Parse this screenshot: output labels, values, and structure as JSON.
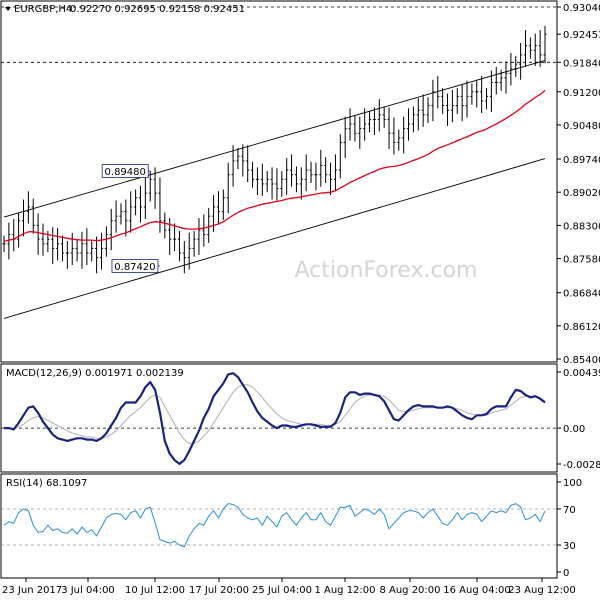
{
  "header": {
    "symbol": "EURGBP,H4",
    "ohlc": "0.92270 0.92695 0.92158 0.92451"
  },
  "watermark": "ActionForex.com",
  "colors": {
    "price": "#000000",
    "ma": "#e0001b",
    "macd": "#1a237e",
    "signal": "#b0b0b0",
    "rsi": "#2a8fd6",
    "grid": "#cccccc",
    "watermark": "#d4d4d4"
  },
  "chart_data": [
    {
      "type": "line",
      "panel": "price",
      "ylim": [
        0.854,
        0.9304
      ],
      "y_ticks": [
        "0.93040",
        "0.92451",
        "0.91840",
        "0.91200",
        "0.90480",
        "0.89740",
        "0.89020",
        "0.88300",
        "0.87580",
        "0.86840",
        "0.86120",
        "0.85400"
      ],
      "y_tick_values": [
        0.9304,
        0.92451,
        0.9184,
        0.912,
        0.9048,
        0.8974,
        0.8902,
        0.883,
        0.8758,
        0.8684,
        0.8612,
        0.854
      ],
      "x_ticks": [
        "23 Jun 2017",
        "3 Jul 04:00",
        "10 Jul 12:00",
        "17 Jul 20:00",
        "25 Jul 04:00",
        "1 Aug 12:00",
        "8 Aug 20:00",
        "16 Aug 04:00",
        "23 Aug 12:00"
      ],
      "annotations": [
        {
          "label": "0.89480",
          "value": 0.8948,
          "bar": 30
        },
        {
          "label": "0.87420",
          "value": 0.8742,
          "bar": 32
        }
      ],
      "horizontal_lines": [
        0.9304,
        0.9184
      ],
      "channel": {
        "upper": {
          "from_bar": 0,
          "from_value": 0.8848,
          "to_bar": 111,
          "to_value": 0.9188
        },
        "lower": {
          "from_bar": 0,
          "from_value": 0.8628,
          "to_bar": 111,
          "to_value": 0.8975
        }
      },
      "series": [
        {
          "name": "close",
          "values": [
            0.879,
            0.881,
            0.88,
            0.884,
            0.886,
            0.887,
            0.883,
            0.88,
            0.879,
            0.88,
            0.878,
            0.879,
            0.877,
            0.877,
            0.878,
            0.877,
            0.879,
            0.877,
            0.878,
            0.876,
            0.878,
            0.881,
            0.884,
            0.885,
            0.886,
            0.884,
            0.887,
            0.889,
            0.887,
            0.89,
            0.893,
            0.89,
            0.884,
            0.882,
            0.88,
            0.88,
            0.877,
            0.876,
            0.878,
            0.88,
            0.882,
            0.881,
            0.885,
            0.887,
            0.886,
            0.889,
            0.894,
            0.897,
            0.898,
            0.897,
            0.895,
            0.893,
            0.893,
            0.892,
            0.893,
            0.892,
            0.891,
            0.893,
            0.895,
            0.894,
            0.892,
            0.893,
            0.895,
            0.894,
            0.894,
            0.896,
            0.894,
            0.893,
            0.895,
            0.901,
            0.904,
            0.905,
            0.903,
            0.904,
            0.905,
            0.906,
            0.906,
            0.907,
            0.906,
            0.903,
            0.901,
            0.902,
            0.904,
            0.905,
            0.907,
            0.908,
            0.907,
            0.909,
            0.912,
            0.911,
            0.909,
            0.908,
            0.909,
            0.911,
            0.909,
            0.911,
            0.912,
            0.912,
            0.91,
            0.911,
            0.914,
            0.914,
            0.915,
            0.916,
            0.917,
            0.918,
            0.92,
            0.922,
            0.921,
            0.922,
            0.92,
            0.9245
          ]
        },
        {
          "name": "ma",
          "values": [
            0.8795,
            0.8798,
            0.88,
            0.8806,
            0.8812,
            0.8816,
            0.8816,
            0.8814,
            0.8812,
            0.881,
            0.8808,
            0.8806,
            0.8804,
            0.8802,
            0.88,
            0.8799,
            0.8798,
            0.8798,
            0.8798,
            0.8797,
            0.8798,
            0.88,
            0.8803,
            0.8807,
            0.8811,
            0.8814,
            0.8818,
            0.8823,
            0.8827,
            0.8832,
            0.8836,
            0.8838,
            0.8837,
            0.8835,
            0.8832,
            0.8829,
            0.8826,
            0.8823,
            0.8822,
            0.8822,
            0.8823,
            0.8824,
            0.8827,
            0.883,
            0.8833,
            0.8838,
            0.8845,
            0.8852,
            0.8858,
            0.8863,
            0.8867,
            0.887,
            0.8873,
            0.8876,
            0.8878,
            0.888,
            0.8882,
            0.8884,
            0.8887,
            0.8889,
            0.889,
            0.8892,
            0.8894,
            0.8896,
            0.8898,
            0.89,
            0.8901,
            0.8902,
            0.8905,
            0.8911,
            0.8917,
            0.8923,
            0.8928,
            0.8933,
            0.8938,
            0.8943,
            0.8947,
            0.8952,
            0.8955,
            0.8957,
            0.8958,
            0.896,
            0.8963,
            0.8967,
            0.8971,
            0.8975,
            0.8979,
            0.8984,
            0.8991,
            0.8997,
            0.9001,
            0.9005,
            0.9009,
            0.9014,
            0.9018,
            0.9022,
            0.9027,
            0.9032,
            0.9035,
            0.9039,
            0.9045,
            0.905,
            0.9056,
            0.9062,
            0.9069,
            0.9076,
            0.9084,
            0.9093,
            0.91,
            0.9108,
            0.9114,
            0.9123
          ]
        }
      ]
    },
    {
      "type": "line",
      "panel": "macd",
      "title": "MACD(12,26,9) 0.001971 0.002139",
      "ylim": [
        -0.002809,
        0.00439
      ],
      "y_ticks": [
        "0.00439",
        "0.00",
        "-0.002809"
      ],
      "y_tick_values": [
        0.00439,
        0.0,
        -0.002809
      ],
      "series": [
        {
          "name": "macd",
          "values": [
            0.0,
            0.0,
            -0.0001,
            0.0004,
            0.001,
            0.0016,
            0.0017,
            0.0012,
            0.0005,
            0.0,
            -0.0005,
            -0.0008,
            -0.0009,
            -0.001,
            -0.0009,
            -0.0008,
            -0.0008,
            -0.0009,
            -0.0009,
            -0.001,
            -0.0008,
            -0.0004,
            0.0002,
            0.0008,
            0.0016,
            0.002,
            0.002,
            0.002,
            0.0025,
            0.0032,
            0.0036,
            0.003,
            0.0012,
            -0.001,
            -0.002,
            -0.0025,
            -0.0028,
            -0.0025,
            -0.0018,
            -0.001,
            -0.0002,
            0.0008,
            0.0015,
            0.0025,
            0.003,
            0.0035,
            0.0042,
            0.0043,
            0.004,
            0.0034,
            0.0028,
            0.002,
            0.0013,
            0.0008,
            0.0005,
            0.0002,
            0.0,
            0.0002,
            0.0002,
            0.0001,
            0.0001,
            0.0002,
            0.0003,
            0.0003,
            0.0002,
            0.0001,
            0.0001,
            0.0001,
            0.0004,
            0.0012,
            0.0024,
            0.0028,
            0.0028,
            0.0026,
            0.0027,
            0.0027,
            0.0026,
            0.0025,
            0.0021,
            0.0014,
            0.0007,
            0.0006,
            0.001,
            0.0014,
            0.0017,
            0.0018,
            0.0017,
            0.0017,
            0.0017,
            0.0016,
            0.0016,
            0.0017,
            0.0016,
            0.0013,
            0.001,
            0.0008,
            0.0007,
            0.001,
            0.001,
            0.0011,
            0.0015,
            0.0017,
            0.0017,
            0.0017,
            0.0024,
            0.003,
            0.0029,
            0.0026,
            0.0024,
            0.0025,
            0.0023,
            0.002
          ]
        },
        {
          "name": "signal",
          "values": [
            0.0,
            0.0,
            0.0,
            0.0001,
            0.0003,
            0.0006,
            0.0008,
            0.0009,
            0.0008,
            0.0006,
            0.0004,
            0.0002,
            0.0,
            -0.0002,
            -0.0004,
            -0.0005,
            -0.0006,
            -0.0007,
            -0.0007,
            -0.0008,
            -0.0008,
            -0.0007,
            -0.0005,
            -0.0002,
            0.0002,
            0.0006,
            0.001,
            0.0013,
            0.0016,
            0.002,
            0.0024,
            0.0026,
            0.0024,
            0.0017,
            0.001,
            0.0003,
            -0.0004,
            -0.0009,
            -0.0012,
            -0.0012,
            -0.001,
            -0.0006,
            -0.0002,
            0.0004,
            0.001,
            0.0016,
            0.0022,
            0.0028,
            0.0032,
            0.0034,
            0.0034,
            0.0032,
            0.0028,
            0.0024,
            0.0019,
            0.0015,
            0.0011,
            0.0008,
            0.0006,
            0.0005,
            0.0004,
            0.0003,
            0.0003,
            0.0003,
            0.0003,
            0.0003,
            0.0002,
            0.0002,
            0.0003,
            0.0005,
            0.001,
            0.0015,
            0.002,
            0.0023,
            0.0025,
            0.0026,
            0.0026,
            0.0026,
            0.0025,
            0.0022,
            0.0018,
            0.0014,
            0.0013,
            0.0013,
            0.0014,
            0.0015,
            0.0016,
            0.0016,
            0.0016,
            0.0016,
            0.0016,
            0.0016,
            0.0016,
            0.0015,
            0.0014,
            0.0012,
            0.0011,
            0.001,
            0.001,
            0.001,
            0.0012,
            0.0013,
            0.0014,
            0.0015,
            0.0018,
            0.0021,
            0.0024,
            0.0025,
            0.0025,
            0.0025,
            0.0024,
            0.0021
          ]
        }
      ]
    },
    {
      "type": "line",
      "panel": "rsi",
      "title": "RSI(14) 68.1097",
      "ylim": [
        0,
        100
      ],
      "y_ticks": [
        "100",
        "70",
        "30",
        "0"
      ],
      "y_tick_values": [
        100,
        70,
        30,
        0
      ],
      "levels": [
        70,
        30
      ],
      "series": [
        {
          "name": "rsi",
          "values": [
            52,
            56,
            54,
            66,
            70,
            68,
            52,
            44,
            45,
            52,
            46,
            48,
            44,
            43,
            48,
            42,
            50,
            44,
            47,
            40,
            50,
            60,
            64,
            65,
            64,
            58,
            66,
            68,
            60,
            70,
            72,
            55,
            36,
            34,
            32,
            34,
            30,
            28,
            40,
            48,
            54,
            52,
            62,
            68,
            60,
            70,
            76,
            75,
            72,
            64,
            60,
            58,
            60,
            52,
            62,
            56,
            50,
            62,
            66,
            58,
            52,
            60,
            66,
            58,
            58,
            66,
            56,
            52,
            62,
            72,
            72,
            74,
            62,
            66,
            70,
            68,
            64,
            70,
            64,
            48,
            54,
            60,
            66,
            68,
            68,
            66,
            60,
            66,
            70,
            62,
            54,
            52,
            58,
            66,
            58,
            64,
            66,
            64,
            56,
            62,
            68,
            66,
            68,
            66,
            74,
            76,
            72,
            58,
            60,
            64,
            56,
            68
          ]
        }
      ]
    }
  ]
}
